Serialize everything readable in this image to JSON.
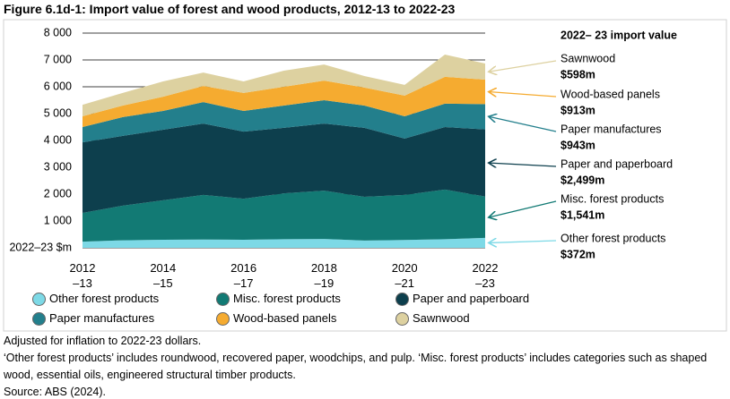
{
  "chart_data": {
    "type": "stacked_area",
    "title": "Figure 6.1d-1: Import value of forest and wood products, 2012-13 to 2022-23",
    "annotation_title": "2022– 23 import value",
    "categories": [
      "2012\n–13",
      null,
      "2014\n–15",
      null,
      "2016\n–17",
      null,
      "2018\n–19",
      null,
      "2020\n–21",
      null,
      "2022\n–23"
    ],
    "series": [
      {
        "name": "Other forest products",
        "color": "#7dd9e6",
        "values": [
          230,
          280,
          300,
          310,
          300,
          320,
          330,
          270,
          290,
          320,
          372
        ],
        "value_labels": [
          null,
          null,
          null,
          null,
          null,
          null,
          null,
          null,
          null,
          null,
          "$372m"
        ]
      },
      {
        "name": "Misc. forest products",
        "color": "#127a74",
        "values": [
          1070,
          1290,
          1470,
          1660,
          1530,
          1710,
          1800,
          1630,
          1680,
          1850,
          1541
        ],
        "value_labels": [
          null,
          null,
          null,
          null,
          null,
          null,
          null,
          null,
          null,
          null,
          "$1,541m"
        ]
      },
      {
        "name": "Paper and paperboard",
        "color": "#0d3f4d",
        "values": [
          2630,
          2600,
          2630,
          2660,
          2500,
          2440,
          2500,
          2570,
          2100,
          2330,
          2499
        ],
        "value_labels": [
          null,
          null,
          null,
          null,
          null,
          null,
          null,
          null,
          null,
          null,
          "$2,499m"
        ]
      },
      {
        "name": "Paper manufactures",
        "color": "#237f8c",
        "values": [
          570,
          700,
          700,
          800,
          770,
          830,
          870,
          830,
          830,
          870,
          943
        ],
        "value_labels": [
          null,
          null,
          null,
          null,
          null,
          null,
          null,
          null,
          null,
          null,
          "$943m"
        ]
      },
      {
        "name": "Wood-based panels",
        "color": "#f5ab30",
        "values": [
          400,
          430,
          530,
          600,
          670,
          700,
          730,
          670,
          770,
          1000,
          913
        ],
        "value_labels": [
          null,
          null,
          null,
          null,
          null,
          null,
          null,
          null,
          null,
          null,
          "$913m"
        ]
      },
      {
        "name": "Sawnwood",
        "color": "#ddd1a0",
        "values": [
          430,
          470,
          570,
          500,
          430,
          600,
          600,
          430,
          400,
          830,
          598
        ],
        "value_labels": [
          null,
          null,
          null,
          null,
          null,
          null,
          null,
          null,
          null,
          null,
          "$598m"
        ]
      }
    ],
    "ylim": [
      0,
      8000
    ],
    "yticks": [
      {
        "value": 0,
        "label": "2022–23 $m"
      },
      {
        "value": 1000,
        "label": "1 000"
      },
      {
        "value": 2000,
        "label": "2 000"
      },
      {
        "value": 3000,
        "label": "3 000"
      },
      {
        "value": 4000,
        "label": "4 000"
      },
      {
        "value": 5000,
        "label": "5 000"
      },
      {
        "value": 6000,
        "label": "6 000"
      },
      {
        "value": 7000,
        "label": "7 000"
      },
      {
        "value": 8000,
        "label": "8 000"
      }
    ],
    "grid": true,
    "notes": [
      "Adjusted for inflation to 2022-23 dollars.",
      "‘Other forest products’ includes roundwood, recovered paper, woodchips, and pulp. ‘Misc. forest products’ includes categories such as shaped wood, essential oils, engineered structural timber products.",
      "Source: ABS (2024)."
    ]
  }
}
